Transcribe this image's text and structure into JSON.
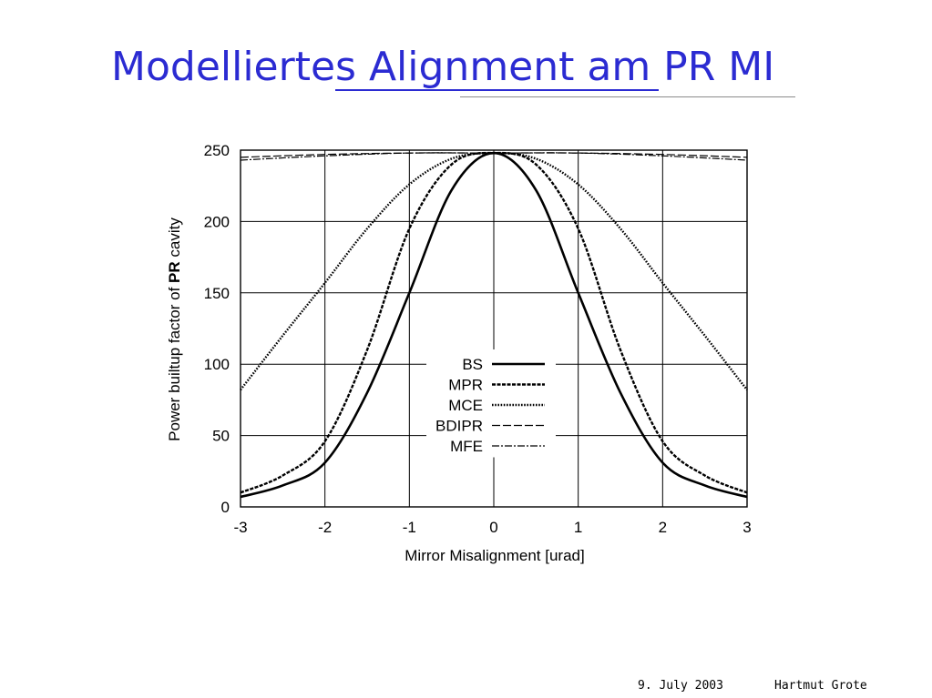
{
  "slide": {
    "title": "Modelliertes Alignment am PR MI",
    "title_color": "#2b2bd2"
  },
  "footer": {
    "date": "9. July 2003",
    "author": "Hartmut Grote"
  },
  "chart_data": {
    "type": "line",
    "title": "",
    "xlabel": "Mirror Misalignment [urad]",
    "ylabel_prefix": "Power builtup factor of ",
    "ylabel_bold": "PR",
    "ylabel_suffix": " cavity",
    "xlim": [
      -3,
      3
    ],
    "ylim": [
      0,
      250
    ],
    "xticks": [
      -3,
      -2,
      -1,
      0,
      1,
      2,
      3
    ],
    "yticks": [
      0,
      50,
      100,
      150,
      200,
      250
    ],
    "grid": true,
    "legend_position": "center",
    "series": [
      {
        "name": "BS",
        "style": "solid",
        "x": [
          -3,
          -2.5,
          -2,
          -1.5,
          -1,
          -0.5,
          0,
          0.5,
          1,
          1.5,
          2,
          2.5,
          3
        ],
        "y": [
          7,
          15,
          31,
          80,
          150,
          222,
          248,
          222,
          150,
          80,
          31,
          15,
          7
        ]
      },
      {
        "name": "MPR",
        "style": "dashed",
        "x": [
          -3,
          -2.5,
          -2,
          -1.5,
          -1,
          -0.5,
          0,
          0.5,
          1,
          1.5,
          2,
          2.5,
          3
        ],
        "y": [
          10,
          22,
          46,
          110,
          195,
          240,
          248,
          240,
          195,
          110,
          46,
          22,
          10
        ]
      },
      {
        "name": "MCE",
        "style": "dotted",
        "x": [
          -3,
          -2.5,
          -2,
          -1.5,
          -1,
          -0.5,
          0,
          0.5,
          1,
          1.5,
          2,
          2.5,
          3
        ],
        "y": [
          82,
          120,
          157,
          195,
          226,
          244,
          248,
          244,
          226,
          195,
          157,
          120,
          82
        ]
      },
      {
        "name": "BDIPR",
        "style": "longdash",
        "x": [
          -3,
          -2,
          -1,
          0,
          1,
          2,
          3
        ],
        "y": [
          245,
          247,
          248,
          248,
          248,
          247,
          245
        ]
      },
      {
        "name": "MFE",
        "style": "dashdot",
        "x": [
          -3,
          -2,
          -1,
          0,
          1,
          2,
          3
        ],
        "y": [
          243,
          246,
          248,
          248,
          248,
          246,
          243
        ]
      }
    ]
  }
}
